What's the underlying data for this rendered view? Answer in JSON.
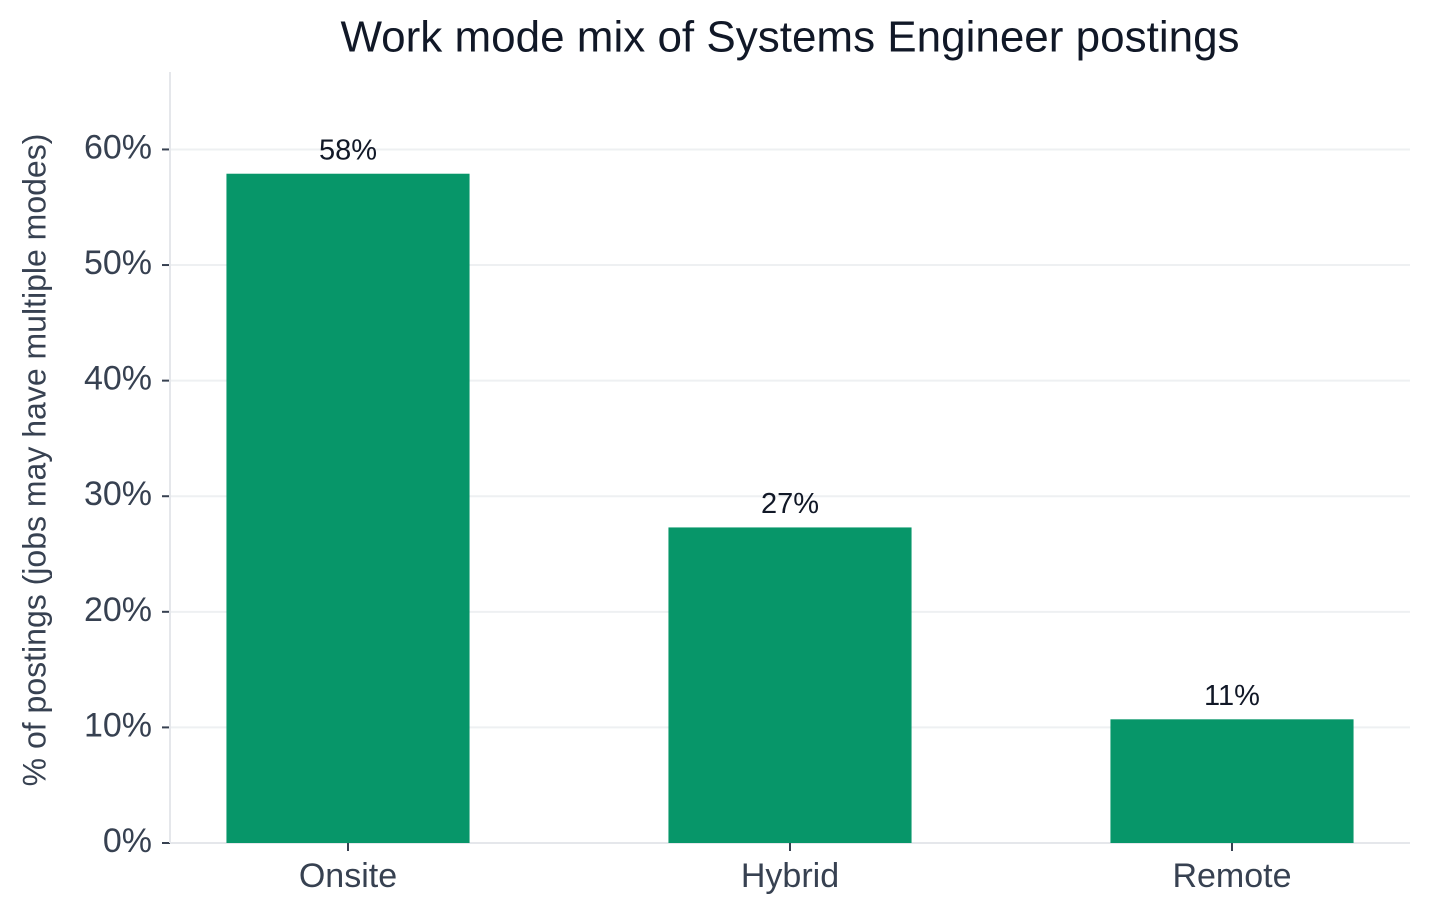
{
  "chart_data": {
    "type": "bar",
    "title": "Work mode mix of Systems Engineer postings",
    "y_label": "% of postings (jobs may have multiple modes)",
    "categories": [
      "Onsite",
      "Hybrid",
      "Remote"
    ],
    "values": [
      57.9,
      27.3,
      10.7
    ],
    "value_labels": [
      "58%",
      "27%",
      "11%"
    ],
    "color": "#079669",
    "ylim": [
      0,
      66.7
    ],
    "yticks": [
      {
        "value": 0,
        "label": "0%"
      },
      {
        "value": 10,
        "label": "10%"
      },
      {
        "value": 20,
        "label": "20%"
      },
      {
        "value": 30,
        "label": "30%"
      },
      {
        "value": 40,
        "label": "40%"
      },
      {
        "value": 50,
        "label": "50%"
      },
      {
        "value": 60,
        "label": "60%"
      }
    ],
    "grid": true
  }
}
